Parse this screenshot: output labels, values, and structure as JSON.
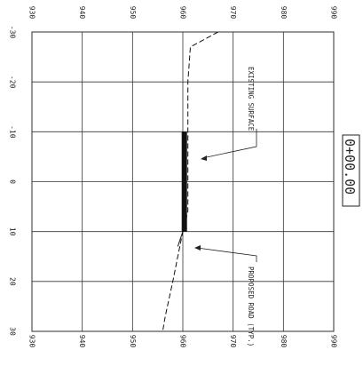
{
  "drawing": {
    "station_label": "0+00.00",
    "annotations": {
      "existing_surface": "EXISTING SURFACE",
      "proposed_road": "PROPOSED ROAD (TYP.)"
    }
  },
  "chart_data": {
    "type": "line",
    "title": "",
    "xlabel": "",
    "ylabel": "",
    "elevation_ticks": [
      "930",
      "940",
      "950",
      "960",
      "970",
      "980",
      "990"
    ],
    "offset_ticks": [
      "-30",
      "-20",
      "-10",
      "0",
      "10",
      "20",
      "30"
    ],
    "elevation_range": [
      930,
      990
    ],
    "offset_range": [
      -30,
      30
    ],
    "grid": true,
    "series": [
      {
        "role": "existing-surface",
        "style": "dashed",
        "points": [
          {
            "offset": -30,
            "elevation": 967
          },
          {
            "offset": -27,
            "elevation": 961.5
          },
          {
            "offset": -20,
            "elevation": 961
          },
          {
            "offset": -10,
            "elevation": 961
          },
          {
            "offset": 0,
            "elevation": 961
          },
          {
            "offset": 6,
            "elevation": 961
          },
          {
            "offset": 10,
            "elevation": 960
          },
          {
            "offset": 15,
            "elevation": 959
          },
          {
            "offset": 20,
            "elevation": 958
          },
          {
            "offset": 27,
            "elevation": 956.5
          },
          {
            "offset": 30,
            "elevation": 956
          }
        ]
      },
      {
        "role": "proposed-road",
        "style": "thick-solid",
        "points": [
          {
            "offset": -10,
            "elevation": 960.3
          },
          {
            "offset": 10,
            "elevation": 960.3
          }
        ]
      },
      {
        "role": "side-slope-right",
        "style": "solid",
        "points": [
          {
            "offset": 10,
            "elevation": 960
          },
          {
            "offset": 13,
            "elevation": 959
          }
        ]
      }
    ]
  }
}
